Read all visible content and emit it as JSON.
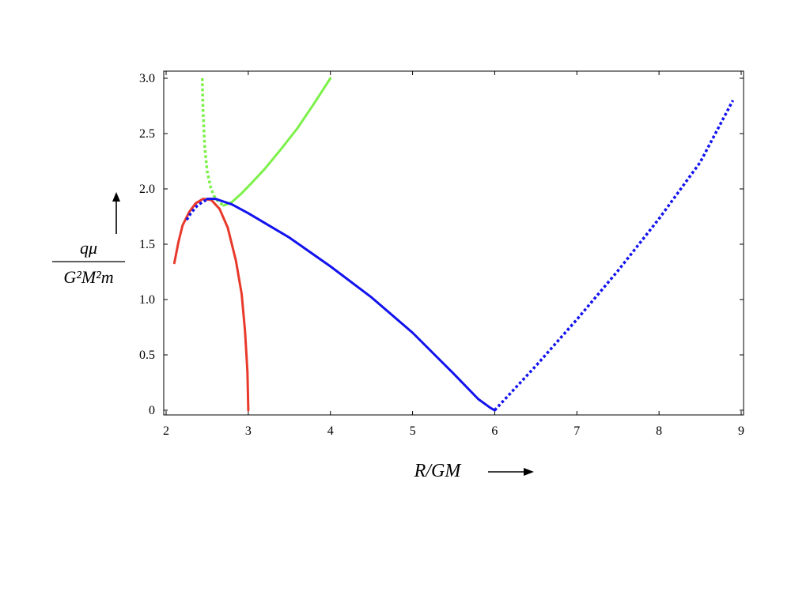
{
  "chart_data": {
    "type": "line",
    "title": "",
    "xlabel": "R/GM",
    "ylabel": {
      "numerator": "qμ",
      "denominator": "G²M²m"
    },
    "xlim": [
      2,
      9
    ],
    "ylim": [
      0,
      3.0
    ],
    "x_ticks": [
      "2",
      "3",
      "4",
      "5",
      "6",
      "7",
      "8",
      "9"
    ],
    "y_ticks": [
      "0",
      "0.5",
      "1.0",
      "1.5",
      "2.0",
      "2.5",
      "3.0"
    ],
    "grid": false,
    "colors": {
      "red": "#e8392b",
      "green": "#7df04a",
      "blue": "#1212ee",
      "frame": "#000000"
    },
    "series": [
      {
        "color": "red",
        "style": "solid",
        "x": [
          2.1,
          2.15,
          2.2,
          2.28,
          2.36,
          2.45,
          2.55,
          2.65,
          2.75,
          2.85,
          2.92,
          2.96,
          2.99,
          3.0
        ],
        "y": [
          1.33,
          1.52,
          1.67,
          1.79,
          1.87,
          1.91,
          1.9,
          1.82,
          1.65,
          1.35,
          1.05,
          0.72,
          0.35,
          0.0
        ]
      },
      {
        "color": "green",
        "style": "dotted",
        "x": [
          2.44,
          2.45,
          2.47,
          2.5,
          2.54,
          2.58,
          2.64,
          2.7
        ],
        "y": [
          3.0,
          2.7,
          2.38,
          2.16,
          2.02,
          1.94,
          1.88,
          1.85
        ]
      },
      {
        "color": "green",
        "style": "solid",
        "x": [
          2.7,
          2.8,
          2.92,
          3.05,
          3.2,
          3.4,
          3.6,
          3.8,
          4.0
        ],
        "y": [
          1.85,
          1.88,
          1.96,
          2.06,
          2.18,
          2.36,
          2.55,
          2.77,
          3.0
        ]
      },
      {
        "color": "blue",
        "style": "dotted",
        "x": [
          2.25,
          2.3,
          2.38,
          2.46,
          2.5
        ],
        "y": [
          1.72,
          1.78,
          1.85,
          1.89,
          1.9
        ]
      },
      {
        "color": "blue",
        "style": "solid",
        "x": [
          2.5,
          2.6,
          2.8,
          3.0,
          3.5,
          4.0,
          4.5,
          5.0,
          5.5,
          5.8,
          5.95,
          6.0
        ],
        "y": [
          1.91,
          1.91,
          1.86,
          1.78,
          1.56,
          1.3,
          1.02,
          0.7,
          0.33,
          0.1,
          0.02,
          0.0
        ]
      },
      {
        "color": "blue",
        "style": "dotted",
        "x": [
          6.0,
          6.5,
          7.0,
          7.5,
          8.0,
          8.5,
          8.9
        ],
        "y": [
          0.0,
          0.4,
          0.82,
          1.26,
          1.73,
          2.24,
          2.8
        ]
      }
    ]
  }
}
